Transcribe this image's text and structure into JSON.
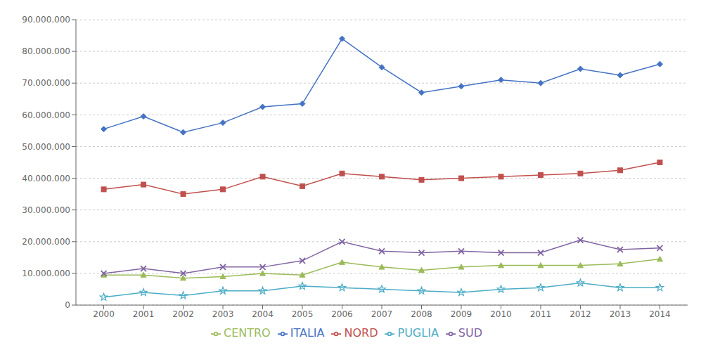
{
  "chart_data": {
    "type": "line",
    "x": [
      2000,
      2001,
      2002,
      2003,
      2004,
      2005,
      2006,
      2007,
      2008,
      2009,
      2010,
      2011,
      2012,
      2013,
      2014
    ],
    "series": [
      {
        "name": "ITALIA",
        "color": "#4472C4",
        "marker": "diamond",
        "values": [
          55500000,
          59500000,
          54500000,
          57500000,
          62500000,
          63500000,
          84000000,
          75000000,
          67000000,
          69000000,
          71000000,
          70000000,
          74500000,
          72500000,
          76000000
        ]
      },
      {
        "name": "NORD",
        "color": "#C0504D",
        "marker": "square",
        "values": [
          36500000,
          38000000,
          35000000,
          36500000,
          40500000,
          37500000,
          41500000,
          40500000,
          39500000,
          40000000,
          40500000,
          41000000,
          41500000,
          42500000,
          45000000
        ]
      },
      {
        "name": "CENTRO",
        "color": "#9BBB59",
        "marker": "triangle",
        "values": [
          9500000,
          9500000,
          8500000,
          9000000,
          10000000,
          9500000,
          13500000,
          12000000,
          11000000,
          12000000,
          12500000,
          12500000,
          12500000,
          13000000,
          14500000
        ]
      },
      {
        "name": "SUD",
        "color": "#8064A2",
        "marker": "x",
        "values": [
          10000000,
          11500000,
          10000000,
          12000000,
          12000000,
          14000000,
          20000000,
          17000000,
          16500000,
          17000000,
          16500000,
          16500000,
          20500000,
          17500000,
          18000000
        ]
      },
      {
        "name": "PUGLIA",
        "color": "#4BACC6",
        "marker": "star",
        "values": [
          2500000,
          4000000,
          3000000,
          4500000,
          4500000,
          6000000,
          5500000,
          5000000,
          4500000,
          4000000,
          5000000,
          5500000,
          7000000,
          5500000,
          5500000
        ]
      }
    ],
    "xlim": [
      1999.3,
      2014.7
    ],
    "xticks": [
      2000,
      2001,
      2002,
      2003,
      2004,
      2005,
      2006,
      2007,
      2008,
      2009,
      2010,
      2011,
      2012,
      2013,
      2014
    ],
    "ylim": [
      0,
      90000000
    ],
    "yticks": [
      0,
      {
        "value": 10000000,
        "label": "10.000.000"
      },
      {
        "value": 20000000,
        "label": "20.000.000"
      },
      {
        "value": 30000000,
        "label": "30.000.000"
      },
      {
        "value": 40000000,
        "label": "40.000.000"
      },
      {
        "value": 50000000,
        "label": "50.000.000"
      },
      {
        "value": 60000000,
        "label": "60.000.000"
      },
      {
        "value": 70000000,
        "label": "70.000.000"
      },
      {
        "value": 80000000,
        "label": "80.000.000"
      },
      {
        "value": 90000000,
        "label": "90.000.000"
      }
    ],
    "grid": true,
    "legend": "bottom"
  }
}
